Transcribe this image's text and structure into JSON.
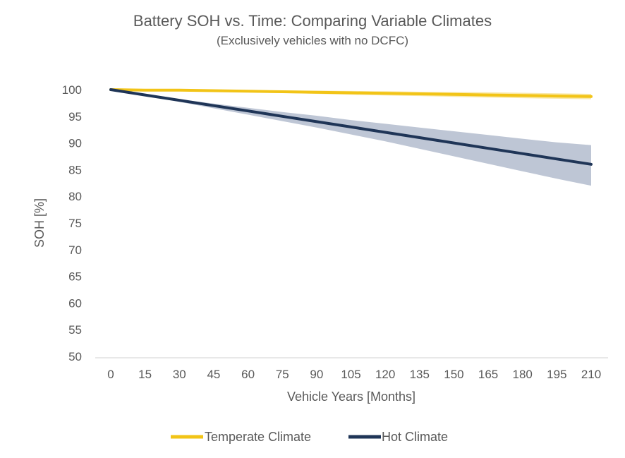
{
  "chart_data": {
    "type": "line",
    "title": "Battery SOH vs. Time: Comparing Variable Climates",
    "subtitle": "(Exclusively vehicles with no DCFC)",
    "xlabel": "Vehicle Years [Months]",
    "ylabel": "SOH [%]",
    "x_ticks": [
      "0",
      "15",
      "30",
      "45",
      "60",
      "75",
      "90",
      "105",
      "120",
      "135",
      "150",
      "165",
      "180",
      "195",
      "210"
    ],
    "y_ticks": [
      "100",
      "95",
      "90",
      "85",
      "80",
      "75",
      "70",
      "65",
      "60",
      "55",
      "50"
    ],
    "xlim": [
      0,
      210
    ],
    "ylim": [
      50,
      100
    ],
    "grid": false,
    "legend_position": "bottom",
    "colors": {
      "temperate": "#F2C417",
      "temperate_band": "#F7E08A",
      "hot": "#1F3557",
      "hot_band": "#B3BCCE"
    },
    "x": [
      0,
      15,
      30,
      45,
      60,
      75,
      90,
      105,
      120,
      135,
      150,
      165,
      180,
      195,
      210
    ],
    "series": [
      {
        "name": "Temperate Climate",
        "values": [
          100,
          99.9,
          99.9,
          99.8,
          99.7,
          99.6,
          99.5,
          99.4,
          99.3,
          99.2,
          99.1,
          99.0,
          98.9,
          98.8,
          98.7
        ],
        "lower": [
          100,
          99.85,
          99.8,
          99.65,
          99.5,
          99.35,
          99.2,
          99.05,
          98.9,
          98.8,
          98.65,
          98.5,
          98.4,
          98.3,
          98.2
        ],
        "upper": [
          100,
          99.95,
          100,
          99.95,
          99.9,
          99.85,
          99.8,
          99.75,
          99.7,
          99.6,
          99.55,
          99.5,
          99.4,
          99.3,
          99.2
        ]
      },
      {
        "name": "Hot Climate",
        "values": [
          100,
          99.0,
          98.0,
          97.0,
          96.0,
          95.0,
          94.0,
          93.0,
          92.0,
          91.0,
          90.0,
          89.0,
          88.0,
          87.0,
          86.0
        ],
        "lower": [
          100,
          98.9,
          97.7,
          96.5,
          95.3,
          94.1,
          92.9,
          91.6,
          90.3,
          88.9,
          87.5,
          86.1,
          84.7,
          83.3,
          82.0
        ],
        "upper": [
          100,
          99.1,
          98.2,
          97.4,
          96.6,
          95.8,
          95.1,
          94.3,
          93.6,
          92.9,
          92.2,
          91.5,
          90.8,
          90.1,
          89.6
        ]
      }
    ]
  }
}
